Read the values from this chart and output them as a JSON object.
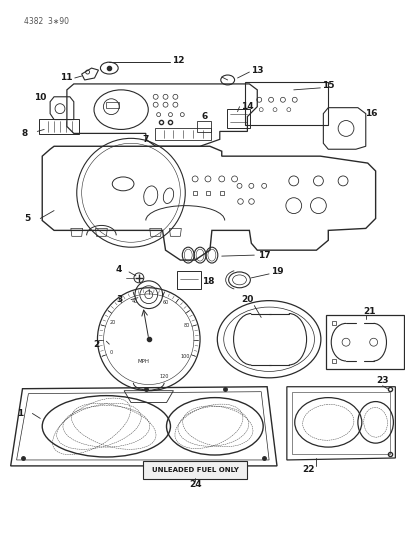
{
  "bg_color": "#ffffff",
  "line_color": "#2a2a2a",
  "text_color": "#1a1a1a",
  "fig_width": 4.08,
  "fig_height": 5.33,
  "dpi": 100,
  "page_id": "4382  3∗90"
}
